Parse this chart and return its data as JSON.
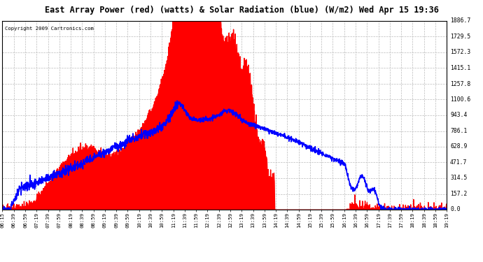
{
  "title": "East Array Power (red) (watts) & Solar Radiation (blue) (W/m2) Wed Apr 15 19:36",
  "copyright": "Copyright 2009 Cartronics.com",
  "background_color": "#ffffff",
  "plot_bg_color": "#ffffff",
  "grid_color": "#bbbbbb",
  "red_fill_color": "#ff0000",
  "blue_line_color": "#0000ff",
  "ymax": 1886.7,
  "ymin": 0.0,
  "yticks": [
    0.0,
    157.2,
    314.5,
    471.7,
    628.9,
    786.1,
    943.4,
    1100.6,
    1257.8,
    1415.1,
    1572.3,
    1729.5,
    1886.7
  ],
  "x_labels": [
    "06:15",
    "06:39",
    "06:59",
    "07:19",
    "07:39",
    "07:59",
    "08:19",
    "08:39",
    "08:59",
    "09:19",
    "09:39",
    "09:59",
    "10:19",
    "10:39",
    "10:59",
    "11:19",
    "11:39",
    "11:59",
    "12:19",
    "12:39",
    "12:59",
    "13:19",
    "13:39",
    "13:59",
    "14:19",
    "14:39",
    "14:59",
    "15:19",
    "15:39",
    "15:59",
    "16:19",
    "16:39",
    "16:59",
    "17:19",
    "17:39",
    "17:59",
    "18:19",
    "18:39",
    "18:59",
    "19:19"
  ]
}
